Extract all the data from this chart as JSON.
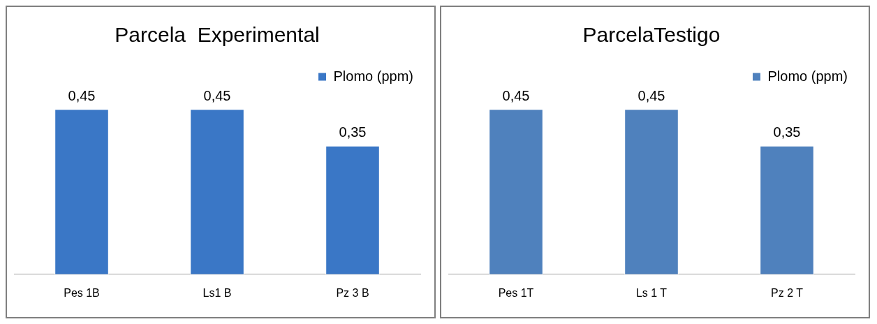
{
  "chart_data": [
    {
      "type": "bar",
      "title": "Parcela  Experimental",
      "categories": [
        "Pes 1B",
        "Ls1 B",
        "Pz 3 B"
      ],
      "series": [
        {
          "name": "Plomo (ppm)",
          "color": "#3a77c6",
          "values": [
            0.45,
            0.45,
            0.35
          ],
          "value_labels": [
            "0,45",
            "0,45",
            "0,35"
          ]
        }
      ],
      "legend": "top right"
    },
    {
      "type": "bar",
      "title": "ParcelaTestigo",
      "categories": [
        "Pes 1T",
        "Ls 1 T",
        "Pz 2 T"
      ],
      "series": [
        {
          "name": "Plomo (ppm)",
          "color": "#4f81bd",
          "values": [
            0.45,
            0.45,
            0.35
          ],
          "value_labels": [
            "0,45",
            "0,45",
            "0,35"
          ]
        }
      ],
      "legend": "top right"
    }
  ]
}
